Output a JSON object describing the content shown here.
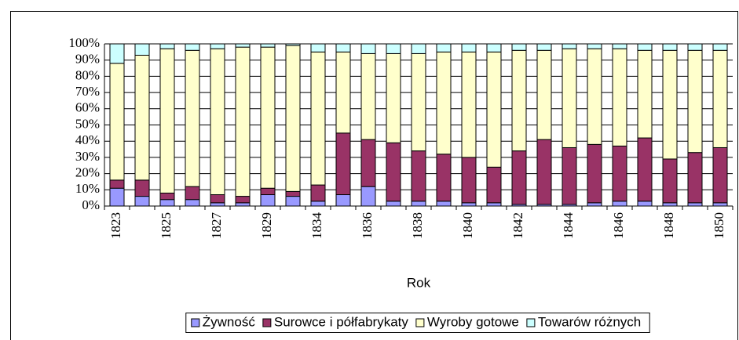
{
  "chart_data": {
    "type": "stacked_bar_100",
    "x_label": "Rok",
    "categories": [
      "1823",
      null,
      "1825",
      null,
      "1827",
      null,
      "1829",
      null,
      "1834",
      null,
      "1836",
      null,
      "1838",
      null,
      "1840",
      null,
      "1842",
      null,
      "1844",
      null,
      "1846",
      null,
      "1848",
      null,
      "1850"
    ],
    "series": [
      {
        "name": "Żywność",
        "color": "#9999ff",
        "values": [
          11,
          6,
          4,
          4,
          2,
          2,
          7,
          6,
          3,
          7,
          12,
          3,
          3,
          3,
          2,
          2,
          1,
          1,
          1,
          2,
          3,
          3,
          2,
          2,
          2
        ]
      },
      {
        "name": "Surowce i półfabrykaty",
        "color": "#993366",
        "values": [
          5,
          10,
          4,
          8,
          5,
          4,
          4,
          3,
          10,
          38,
          29,
          36,
          31,
          29,
          28,
          22,
          33,
          40,
          35,
          36,
          34,
          39,
          27,
          31,
          34
        ]
      },
      {
        "name": "Wyroby gotowe",
        "color": "#ffffcc",
        "values": [
          72,
          77,
          89,
          84,
          90,
          92,
          87,
          90,
          82,
          50,
          53,
          55,
          60,
          63,
          65,
          71,
          62,
          55,
          61,
          59,
          60,
          54,
          67,
          63,
          60
        ]
      },
      {
        "name": "Towarów różnych",
        "color": "#ccffff",
        "values": [
          12,
          7,
          3,
          4,
          3,
          2,
          2,
          1,
          5,
          5,
          6,
          6,
          6,
          5,
          5,
          5,
          4,
          4,
          3,
          3,
          3,
          4,
          4,
          4,
          4
        ]
      }
    ],
    "ylim": [
      0,
      100
    ],
    "yticks": [
      {
        "value": 0,
        "label": "0%"
      },
      {
        "value": 10,
        "label": "10%"
      },
      {
        "value": 20,
        "label": "20%"
      },
      {
        "value": 30,
        "label": "30%"
      },
      {
        "value": 40,
        "label": "40%"
      },
      {
        "value": 50,
        "label": "50%"
      },
      {
        "value": 60,
        "label": "60%"
      },
      {
        "value": 70,
        "label": "70%"
      },
      {
        "value": 80,
        "label": "80%"
      },
      {
        "value": 90,
        "label": "90%"
      },
      {
        "value": 100,
        "label": "100%"
      }
    ],
    "grid": true,
    "legend": "bottom"
  }
}
